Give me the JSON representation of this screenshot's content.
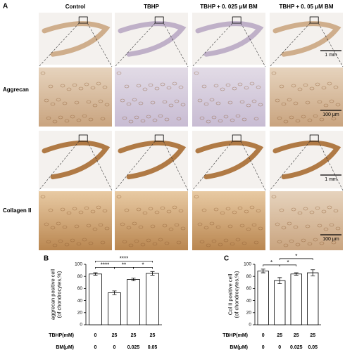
{
  "panel_a": {
    "label": "A",
    "columns": [
      "Control",
      "TBHP",
      "TBHP + 0. 025 μM BM",
      "TBHP + 0. 05 μM BM"
    ],
    "rows": [
      "Aggrecan",
      "Collagen II"
    ],
    "scale_bars": [
      "1 mm",
      "100 μm",
      "1 mm",
      "100 μm"
    ]
  },
  "chart_data": [
    {
      "type": "bar",
      "panel": "B",
      "y_label": "aggrecan positive cell\n(of chondrocytes,%)",
      "categories": [
        null,
        null,
        null,
        null
      ],
      "values": [
        84,
        53,
        75,
        85
      ],
      "errors": [
        2,
        3,
        2,
        3
      ],
      "color": "#ffffff",
      "ylim": [
        0,
        100
      ],
      "yticks": [
        0,
        20,
        40,
        60,
        80,
        100
      ],
      "annotations": [
        "****",
        "**",
        "*",
        "****"
      ],
      "table": [
        {
          "label": "TBHP(mM)",
          "cells": [
            "0",
            "25",
            "25",
            "25"
          ]
        },
        {
          "label": "BM(μM)",
          "cells": [
            "0",
            "0",
            "0.025",
            "0.05"
          ]
        }
      ]
    },
    {
      "type": "bar",
      "panel": "C",
      "y_label": "Col II positive cell\n(of chondrocytes,%)",
      "categories": [
        null,
        null,
        null,
        null
      ],
      "values": [
        89,
        73,
        84,
        86
      ],
      "errors": [
        3,
        5,
        2,
        5
      ],
      "color": "#ffffff",
      "ylim": [
        0,
        100
      ],
      "yticks": [
        0,
        20,
        40,
        60,
        80,
        100
      ],
      "annotations": [
        "*",
        "*",
        "*"
      ],
      "table": [
        {
          "label": "TBHP(mM)",
          "cells": [
            "0",
            "25",
            "25",
            "25"
          ]
        },
        {
          "label": "BM(μM)",
          "cells": [
            "0",
            "0",
            "0.025",
            "0.05"
          ]
        }
      ]
    }
  ]
}
